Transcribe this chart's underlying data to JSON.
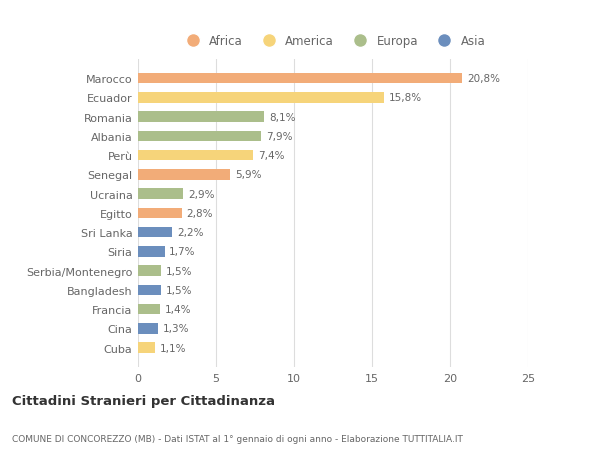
{
  "countries": [
    "Marocco",
    "Ecuador",
    "Romania",
    "Albania",
    "Perù",
    "Senegal",
    "Ucraina",
    "Egitto",
    "Sri Lanka",
    "Siria",
    "Serbia/Montenegro",
    "Bangladesh",
    "Francia",
    "Cina",
    "Cuba"
  ],
  "values": [
    20.8,
    15.8,
    8.1,
    7.9,
    7.4,
    5.9,
    2.9,
    2.8,
    2.2,
    1.7,
    1.5,
    1.5,
    1.4,
    1.3,
    1.1
  ],
  "continents": [
    "Africa",
    "America",
    "Europa",
    "Europa",
    "America",
    "Africa",
    "Europa",
    "Africa",
    "Asia",
    "Asia",
    "Europa",
    "Asia",
    "Europa",
    "Asia",
    "America"
  ],
  "colors": {
    "Africa": "#F2AC78",
    "America": "#F6D47A",
    "Europa": "#ABBE8B",
    "Asia": "#6B8EBD"
  },
  "legend_labels": [
    "Africa",
    "America",
    "Europa",
    "Asia"
  ],
  "xlim": [
    0,
    25
  ],
  "xticks": [
    0,
    5,
    10,
    15,
    20,
    25
  ],
  "title": "Cittadini Stranieri per Cittadinanza",
  "subtitle": "COMUNE DI CONCOREZZO (MB) - Dati ISTAT al 1° gennaio di ogni anno - Elaborazione TUTTITALIA.IT",
  "bg_color": "#FFFFFF",
  "plot_bg_color": "#FFFFFF",
  "bar_height": 0.55,
  "grid_color": "#DDDDDD",
  "label_color": "#666666",
  "pct_label_color": "#666666"
}
